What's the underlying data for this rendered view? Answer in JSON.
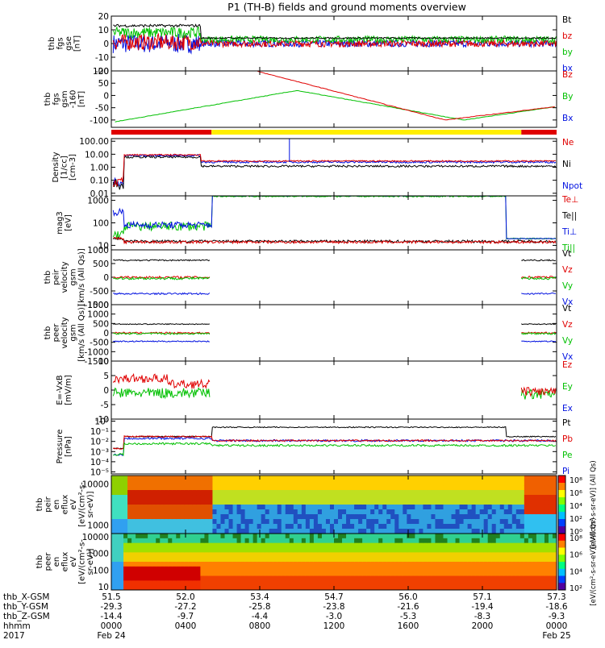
{
  "title": "P1 (TH-B) fields and ground moments overview",
  "colors": {
    "black": "#000000",
    "red": "#e00000",
    "green": "#00c000",
    "blue": "#0010e0",
    "yellow": "#ffee00"
  },
  "panels": [
    {
      "id": "fgs",
      "ylabel_lines": [
        "thb",
        "fgs",
        "gse",
        "[nT]"
      ],
      "yticks": [
        "20",
        "10",
        "0",
        "-10",
        "-20"
      ],
      "ylim": [
        -20,
        20
      ],
      "ticks_num": [
        20,
        10,
        0,
        -10,
        -20
      ],
      "legend": [
        {
          "t": "Bt",
          "c": "black"
        },
        {
          "t": "bz",
          "c": "red"
        },
        {
          "t": "by",
          "c": "green"
        },
        {
          "t": "bx",
          "c": "blue"
        }
      ]
    },
    {
      "id": "fgsgsm",
      "ylabel_lines": [
        "thb",
        "fgs",
        "gsm",
        "-160",
        "[nT]"
      ],
      "yticks": [
        "100",
        "50",
        "0",
        "-50",
        "-100"
      ],
      "ylim": [
        -130,
        100
      ],
      "ticks_num": [
        100,
        50,
        0,
        -50,
        -100
      ],
      "legend": [
        {
          "t": "Bz",
          "c": "red"
        },
        {
          "t": "By",
          "c": "green"
        },
        {
          "t": "Bx",
          "c": "blue"
        }
      ]
    },
    {
      "id": "density",
      "ylabel_lines": [
        "Density",
        "[1/cc]",
        "[cm-3]"
      ],
      "yticks": [
        "100.00",
        "10.00",
        "1.00",
        "0.10",
        "0.01"
      ],
      "log": true,
      "ticks_num": [
        100,
        10,
        1,
        0.1,
        0.01
      ],
      "legend": [
        {
          "t": "Ne",
          "c": "red"
        },
        {
          "t": "Ni",
          "c": "black"
        },
        {
          "t": "Npot",
          "c": "blue"
        }
      ]
    },
    {
      "id": "temp",
      "ylabel_lines": [
        "mag3",
        "[eV]"
      ],
      "yticks": [
        "1000",
        "100",
        "10"
      ],
      "log": true,
      "ticks_num": [
        1000,
        100,
        10
      ],
      "legend": [
        {
          "t": "Te⊥",
          "c": "red"
        },
        {
          "t": "Te||",
          "c": "black"
        },
        {
          "t": "Ti⊥",
          "c": "blue"
        },
        {
          "t": "Ti||",
          "c": "green"
        }
      ]
    },
    {
      "id": "peirvel",
      "ylabel_lines": [
        "thb",
        "peir",
        "velocity",
        "gsm",
        "[km/s (All Qs)]"
      ],
      "yticks": [
        "1000",
        "500",
        "0",
        "-500",
        "-1000"
      ],
      "ylim": [
        -1000,
        1000
      ],
      "ticks_num": [
        1000,
        500,
        0,
        -500,
        -1000
      ],
      "legend": [
        {
          "t": "Vt",
          "c": "black"
        },
        {
          "t": "Vz",
          "c": "red"
        },
        {
          "t": "Vy",
          "c": "green"
        },
        {
          "t": "Vx",
          "c": "blue"
        }
      ]
    },
    {
      "id": "peervel",
      "ylabel_lines": [
        "thb",
        "peer",
        "velocity",
        "gsm",
        "[km/s (All Qs)]"
      ],
      "yticks": [
        "1500",
        "1000",
        "500",
        "0",
        "-500",
        "-1000",
        "-1500"
      ],
      "ylim": [
        -1500,
        1500
      ],
      "ticks_num": [
        1500,
        1000,
        500,
        0,
        -500,
        -1000,
        -1500
      ],
      "legend": [
        {
          "t": "Vt",
          "c": "black"
        },
        {
          "t": "Vz",
          "c": "red"
        },
        {
          "t": "Vy",
          "c": "green"
        },
        {
          "t": "Vx",
          "c": "blue"
        }
      ]
    },
    {
      "id": "efield",
      "ylabel_lines": [
        "E=-VxB",
        "[mV/m]"
      ],
      "yticks": [
        "10",
        "5",
        "0",
        "-5",
        "-10"
      ],
      "ylim": [
        -10,
        10
      ],
      "ticks_num": [
        10,
        5,
        0,
        -5,
        -10
      ],
      "legend": [
        {
          "t": "Ez",
          "c": "red"
        },
        {
          "t": "Ey",
          "c": "green"
        },
        {
          "t": "Ex",
          "c": "blue"
        }
      ]
    },
    {
      "id": "pressure",
      "ylabel_lines": [
        "Pressure",
        "[nPa]"
      ],
      "yticks": [
        "10⁰",
        "10⁻¹",
        "10⁻²",
        "10⁻³",
        "10⁻⁴",
        "10⁻⁵"
      ],
      "log": true,
      "ticks_num": [
        1,
        0.1,
        0.01,
        0.001,
        0.0001,
        1e-05
      ],
      "legend": [
        {
          "t": "Pt",
          "c": "black"
        },
        {
          "t": "Pb",
          "c": "red"
        },
        {
          "t": "Pe",
          "c": "green"
        },
        {
          "t": "Pi",
          "c": "blue"
        }
      ]
    },
    {
      "id": "peirspec",
      "ylabel_lines": [
        "thb",
        "peir",
        "en",
        "eflux",
        "eV",
        "[eV/(cm²-s-",
        "sr-eV)]"
      ],
      "yticks": [
        "10000",
        "1000"
      ],
      "log": true,
      "ticks_num": [
        10000,
        1000
      ]
    },
    {
      "id": "peerspec",
      "ylabel_lines": [
        "thb",
        "peer",
        "en",
        "eflux",
        "eV",
        "[eV/(cm²-s-",
        "sr-eV)]"
      ],
      "yticks": [
        "10000",
        "1000",
        "100",
        "10"
      ],
      "log": true,
      "ticks_num": [
        10000,
        1000,
        100,
        10
      ]
    }
  ],
  "colorbars": [
    {
      "labels": [
        "10⁸",
        "10⁶",
        "10⁴",
        "10²",
        "10⁰"
      ],
      "title": "[eV/(cm²-s-sr-eV)] (All Qs)"
    },
    {
      "labels": [
        "10⁸",
        "10⁶",
        "10⁴",
        "10²"
      ],
      "title": "[eV/(cm²-s-sr-eV)] (All Qs)"
    }
  ],
  "footer": {
    "rows": [
      {
        "label": "thb_X-GSM",
        "values": [
          "51.5",
          "52.0",
          "53.4",
          "54.7",
          "56.0",
          "57.1",
          "57.3"
        ]
      },
      {
        "label": "thb_Y-GSM",
        "values": [
          "-29.3",
          "-27.2",
          "-25.8",
          "-23.8",
          "-21.6",
          "-19.4",
          "-18.6"
        ]
      },
      {
        "label": "thb_Z-GSM",
        "values": [
          "-14.4",
          "-9.7",
          "-4.4",
          "-3.0",
          "-5.3",
          "-8.3",
          "-9.3"
        ]
      },
      {
        "label": "hhmm",
        "values": [
          "0000",
          "0400",
          "0800",
          "1200",
          "1600",
          "2000",
          "0000"
        ]
      },
      {
        "label": "2017",
        "values": [
          "Feb 24",
          "",
          "",
          "",
          "",
          "",
          "Feb 25"
        ]
      }
    ]
  },
  "chart_data": {
    "type": "line",
    "title": "P1 (TH-B) fields and ground moments overview",
    "x_ticks_hhmm": [
      "0000",
      "0400",
      "0800",
      "1200",
      "1600",
      "2000",
      "0000"
    ],
    "x_range_hours": [
      0,
      24
    ],
    "date_start": "Feb 24 2017",
    "date_end": "Feb 25",
    "series_summary": [
      {
        "panel": "thb fgs gse [nT]",
        "name": "Bt",
        "approx": "~15 before 0400, ~5 after"
      },
      {
        "panel": "thb fgs gsm [nT]",
        "name": "By",
        "approx": "rises from -100 to ~20 near 1000, falls to -100 near 1900, returns to -45 at 2400"
      },
      {
        "panel": "thb fgs gsm [nT]",
        "name": "Bz",
        "approx": "falls from 100 near 0800 to -100 near 1800, -45 at 2400"
      },
      {
        "panel": "Density [1/cc]",
        "name": "Ne",
        "approx": "~8 between 0030 and 0430, ~3 after"
      },
      {
        "panel": "mag3 [eV]",
        "name": "Ti",
        "approx": "~1500 between 0700 and 2130, ~80 before"
      },
      {
        "panel": "Pressure [nPa]",
        "name": "Pt",
        "approx": "~0.2 between 0700 and 2130"
      }
    ]
  }
}
